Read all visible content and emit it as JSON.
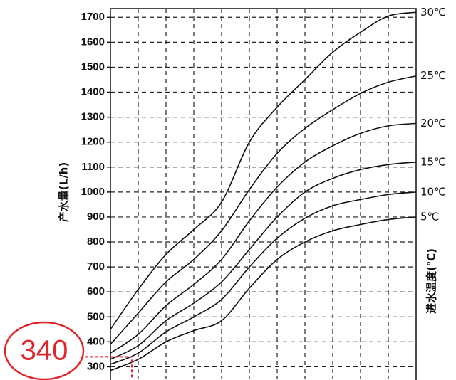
{
  "chart_data": {
    "type": "line",
    "y_label": "产水量(L/h)",
    "y2_label": "进水温度(℃)",
    "x": [
      0,
      1,
      2,
      3,
      4,
      5,
      6,
      7,
      8,
      9,
      10,
      11
    ],
    "xlim": [
      0,
      11
    ],
    "ylim": [
      250,
      1735
    ],
    "yticks": [
      300,
      400,
      500,
      600,
      700,
      800,
      900,
      1000,
      1100,
      1200,
      1300,
      1400,
      1500,
      1600,
      1700
    ],
    "grid": true,
    "color": "#111111",
    "series": [
      {
        "name": "30℃",
        "values": [
          450,
          610,
          750,
          850,
          960,
          1200,
          1340,
          1450,
          1560,
          1640,
          1705,
          1720
        ]
      },
      {
        "name": "25℃",
        "values": [
          390,
          515,
          640,
          730,
          845,
          1010,
          1155,
          1255,
          1330,
          1395,
          1440,
          1465
        ]
      },
      {
        "name": "20℃",
        "values": [
          355,
          430,
          545,
          630,
          730,
          885,
          1020,
          1120,
          1185,
          1235,
          1265,
          1275
        ]
      },
      {
        "name": "15℃",
        "values": [
          330,
          385,
          485,
          555,
          640,
          770,
          900,
          1000,
          1055,
          1090,
          1110,
          1120
        ]
      },
      {
        "name": "10℃",
        "values": [
          310,
          355,
          440,
          500,
          570,
          700,
          815,
          895,
          945,
          970,
          990,
          1000
        ]
      },
      {
        "name": "5℃",
        "values": [
          285,
          330,
          400,
          445,
          485,
          615,
          730,
          800,
          845,
          870,
          890,
          900
        ]
      }
    ],
    "annotation": {
      "label": "340",
      "value": 340,
      "x": 0.77,
      "color": "#e0262a"
    }
  }
}
